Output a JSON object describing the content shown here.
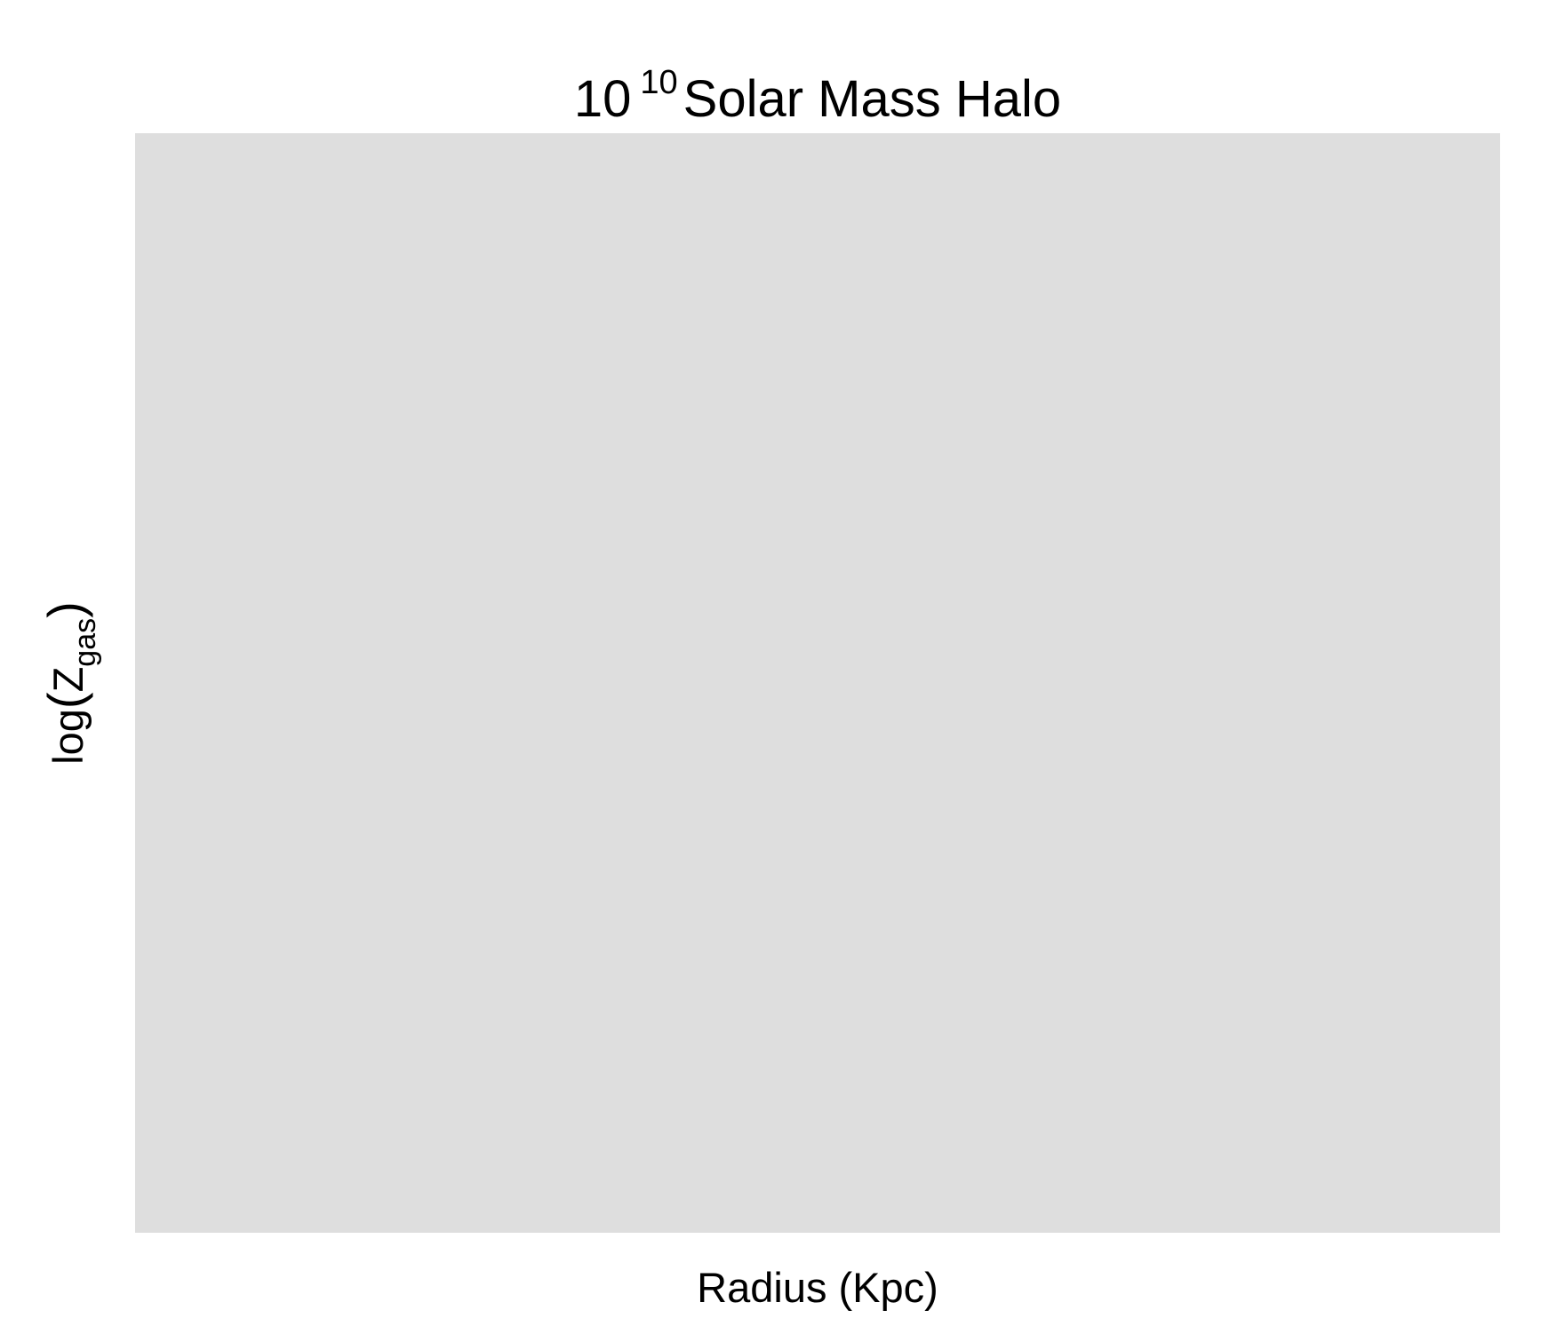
{
  "chart_data": {
    "type": "line",
    "title": {
      "base": "10",
      "exponent": "10",
      "text": "Solar Mass Halo"
    },
    "xlabel": "Radius (Kpc)",
    "ylabel": {
      "prefix": "log",
      "open": "(",
      "symbol": "Z",
      "subscript": "gas",
      "close": ")"
    },
    "series": [],
    "grid": false,
    "panel_background": "#dedede"
  }
}
